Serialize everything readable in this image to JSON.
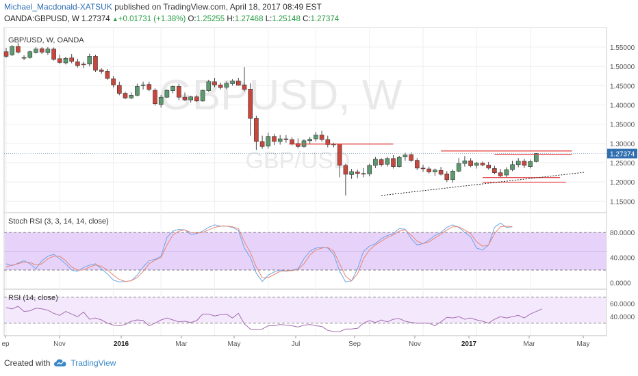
{
  "header": {
    "author": "Michael_Macdonald-XATSUK",
    "published": "published on TradingView.com, April 18, 2017 08:49 EST"
  },
  "quote": {
    "symbol": "OANDA:GBPUSD, W",
    "last": "1.27374",
    "change": "+0.01731 (+1.38%)",
    "open_label": "O:",
    "open": "1.25255",
    "high_label": "H:",
    "high": "1.27468",
    "low_label": "L:",
    "low": "1.25148",
    "close_label": "C:",
    "close": "1.27374"
  },
  "footer": {
    "created_with": "Created with",
    "brand": "TradingView",
    "logo_icon": "tradingview-cloud-icon"
  },
  "colors": {
    "up": "#5b9a6f",
    "down": "#c9463d",
    "stoch_k": "#6ba4e6",
    "stoch_d": "#e9846f",
    "rsi": "#a36bb0",
    "stoch_band": "#e7d3fa",
    "rsi_band": "#f4e9fc",
    "level_lines": "#e64a4a",
    "price_tag": "#2f6fb0"
  },
  "chart_data": [
    {
      "type": "candlestick",
      "title": "GBP/USD, W, OANDA",
      "watermark_main": "GBPUSD, W",
      "watermark_sub": "GBP/USD",
      "x_tick_labels": [
        "ep",
        "Nov",
        "2016",
        "Mar",
        "May",
        "Jul",
        "Sep",
        "Nov",
        "2017",
        "Mar",
        "May"
      ],
      "y_tick_labels": [
        "1.55000",
        "1.50000",
        "1.45000",
        "1.40000",
        "1.35000",
        "1.30000",
        "1.25000",
        "1.20000",
        "1.15000"
      ],
      "ylim": [
        1.14,
        1.58
      ],
      "last_price_label": "1.27374",
      "candles": [
        {
          "o": 1.538,
          "h": 1.548,
          "l": 1.522,
          "c": 1.526
        },
        {
          "o": 1.53,
          "h": 1.555,
          "l": 1.527,
          "c": 1.552
        },
        {
          "o": 1.552,
          "h": 1.561,
          "l": 1.533,
          "c": 1.537
        },
        {
          "o": 1.522,
          "h": 1.529,
          "l": 1.516,
          "c": 1.523
        },
        {
          "o": 1.523,
          "h": 1.541,
          "l": 1.52,
          "c": 1.538
        },
        {
          "o": 1.536,
          "h": 1.55,
          "l": 1.533,
          "c": 1.545
        },
        {
          "o": 1.546,
          "h": 1.55,
          "l": 1.532,
          "c": 1.537
        },
        {
          "o": 1.536,
          "h": 1.55,
          "l": 1.53,
          "c": 1.545
        },
        {
          "o": 1.545,
          "h": 1.549,
          "l": 1.515,
          "c": 1.518
        },
        {
          "o": 1.52,
          "h": 1.53,
          "l": 1.506,
          "c": 1.51
        },
        {
          "o": 1.509,
          "h": 1.525,
          "l": 1.505,
          "c": 1.521
        },
        {
          "o": 1.522,
          "h": 1.532,
          "l": 1.508,
          "c": 1.513
        },
        {
          "o": 1.512,
          "h": 1.52,
          "l": 1.497,
          "c": 1.502
        },
        {
          "o": 1.506,
          "h": 1.512,
          "l": 1.495,
          "c": 1.504
        },
        {
          "o": 1.506,
          "h": 1.533,
          "l": 1.5,
          "c": 1.526
        },
        {
          "o": 1.526,
          "h": 1.53,
          "l": 1.486,
          "c": 1.49
        },
        {
          "o": 1.491,
          "h": 1.495,
          "l": 1.481,
          "c": 1.487
        },
        {
          "o": 1.487,
          "h": 1.493,
          "l": 1.465,
          "c": 1.469
        },
        {
          "o": 1.468,
          "h": 1.475,
          "l": 1.445,
          "c": 1.452
        },
        {
          "o": 1.451,
          "h": 1.46,
          "l": 1.425,
          "c": 1.43
        },
        {
          "o": 1.43,
          "h": 1.434,
          "l": 1.415,
          "c": 1.418
        },
        {
          "o": 1.418,
          "h": 1.432,
          "l": 1.415,
          "c": 1.425
        },
        {
          "o": 1.425,
          "h": 1.455,
          "l": 1.422,
          "c": 1.448
        },
        {
          "o": 1.45,
          "h": 1.46,
          "l": 1.44,
          "c": 1.452
        },
        {
          "o": 1.453,
          "h": 1.46,
          "l": 1.436,
          "c": 1.44
        },
        {
          "o": 1.438,
          "h": 1.443,
          "l": 1.398,
          "c": 1.403
        },
        {
          "o": 1.401,
          "h": 1.426,
          "l": 1.393,
          "c": 1.42
        },
        {
          "o": 1.42,
          "h": 1.44,
          "l": 1.418,
          "c": 1.438
        },
        {
          "o": 1.437,
          "h": 1.45,
          "l": 1.43,
          "c": 1.448
        },
        {
          "o": 1.448,
          "h": 1.455,
          "l": 1.412,
          "c": 1.42
        },
        {
          "o": 1.42,
          "h": 1.432,
          "l": 1.41,
          "c": 1.413
        },
        {
          "o": 1.413,
          "h": 1.424,
          "l": 1.406,
          "c": 1.421
        },
        {
          "o": 1.421,
          "h": 1.425,
          "l": 1.408,
          "c": 1.41
        },
        {
          "o": 1.41,
          "h": 1.44,
          "l": 1.408,
          "c": 1.438
        },
        {
          "o": 1.437,
          "h": 1.465,
          "l": 1.434,
          "c": 1.46
        },
        {
          "o": 1.46,
          "h": 1.47,
          "l": 1.446,
          "c": 1.452
        },
        {
          "o": 1.452,
          "h": 1.458,
          "l": 1.44,
          "c": 1.445
        },
        {
          "o": 1.446,
          "h": 1.461,
          "l": 1.441,
          "c": 1.456
        },
        {
          "o": 1.455,
          "h": 1.467,
          "l": 1.45,
          "c": 1.462
        },
        {
          "o": 1.462,
          "h": 1.47,
          "l": 1.45,
          "c": 1.451
        },
        {
          "o": 1.452,
          "h": 1.498,
          "l": 1.435,
          "c": 1.44
        },
        {
          "o": 1.441,
          "h": 1.456,
          "l": 1.32,
          "c": 1.365
        },
        {
          "o": 1.365,
          "h": 1.372,
          "l": 1.283,
          "c": 1.305
        },
        {
          "o": 1.305,
          "h": 1.32,
          "l": 1.286,
          "c": 1.292
        },
        {
          "o": 1.293,
          "h": 1.328,
          "l": 1.287,
          "c": 1.318
        },
        {
          "o": 1.318,
          "h": 1.325,
          "l": 1.296,
          "c": 1.305
        },
        {
          "o": 1.305,
          "h": 1.322,
          "l": 1.297,
          "c": 1.312
        },
        {
          "o": 1.312,
          "h": 1.322,
          "l": 1.302,
          "c": 1.31
        },
        {
          "o": 1.31,
          "h": 1.316,
          "l": 1.295,
          "c": 1.3
        },
        {
          "o": 1.3,
          "h": 1.313,
          "l": 1.287,
          "c": 1.292
        },
        {
          "o": 1.292,
          "h": 1.311,
          "l": 1.289,
          "c": 1.307
        },
        {
          "o": 1.307,
          "h": 1.317,
          "l": 1.298,
          "c": 1.311
        },
        {
          "o": 1.312,
          "h": 1.33,
          "l": 1.305,
          "c": 1.322
        },
        {
          "o": 1.322,
          "h": 1.333,
          "l": 1.305,
          "c": 1.31
        },
        {
          "o": 1.31,
          "h": 1.32,
          "l": 1.29,
          "c": 1.297
        },
        {
          "o": 1.297,
          "h": 1.302,
          "l": 1.29,
          "c": 1.298
        },
        {
          "o": 1.298,
          "h": 1.3,
          "l": 1.212,
          "c": 1.243
        },
        {
          "o": 1.243,
          "h": 1.247,
          "l": 1.165,
          "c": 1.22
        },
        {
          "o": 1.219,
          "h": 1.234,
          "l": 1.208,
          "c": 1.227
        },
        {
          "o": 1.226,
          "h": 1.232,
          "l": 1.21,
          "c": 1.222
        },
        {
          "o": 1.222,
          "h": 1.236,
          "l": 1.212,
          "c": 1.221
        },
        {
          "o": 1.221,
          "h": 1.247,
          "l": 1.215,
          "c": 1.243
        },
        {
          "o": 1.243,
          "h": 1.265,
          "l": 1.236,
          "c": 1.259
        },
        {
          "o": 1.258,
          "h": 1.262,
          "l": 1.24,
          "c": 1.245
        },
        {
          "o": 1.246,
          "h": 1.265,
          "l": 1.24,
          "c": 1.261
        },
        {
          "o": 1.261,
          "h": 1.27,
          "l": 1.235,
          "c": 1.24
        },
        {
          "o": 1.24,
          "h": 1.268,
          "l": 1.238,
          "c": 1.264
        },
        {
          "o": 1.265,
          "h": 1.276,
          "l": 1.255,
          "c": 1.27
        },
        {
          "o": 1.271,
          "h": 1.277,
          "l": 1.252,
          "c": 1.256
        },
        {
          "o": 1.256,
          "h": 1.262,
          "l": 1.231,
          "c": 1.236
        },
        {
          "o": 1.236,
          "h": 1.245,
          "l": 1.226,
          "c": 1.235
        },
        {
          "o": 1.234,
          "h": 1.24,
          "l": 1.222,
          "c": 1.226
        },
        {
          "o": 1.226,
          "h": 1.235,
          "l": 1.216,
          "c": 1.231
        },
        {
          "o": 1.23,
          "h": 1.239,
          "l": 1.217,
          "c": 1.22
        },
        {
          "o": 1.221,
          "h": 1.228,
          "l": 1.2,
          "c": 1.206
        },
        {
          "o": 1.206,
          "h": 1.233,
          "l": 1.198,
          "c": 1.228
        },
        {
          "o": 1.228,
          "h": 1.262,
          "l": 1.225,
          "c": 1.248
        },
        {
          "o": 1.248,
          "h": 1.267,
          "l": 1.24,
          "c": 1.255
        },
        {
          "o": 1.255,
          "h": 1.262,
          "l": 1.238,
          "c": 1.242
        },
        {
          "o": 1.243,
          "h": 1.252,
          "l": 1.235,
          "c": 1.249
        },
        {
          "o": 1.249,
          "h": 1.253,
          "l": 1.241,
          "c": 1.244
        },
        {
          "o": 1.244,
          "h": 1.252,
          "l": 1.232,
          "c": 1.236
        },
        {
          "o": 1.235,
          "h": 1.242,
          "l": 1.22,
          "c": 1.224
        },
        {
          "o": 1.224,
          "h": 1.234,
          "l": 1.21,
          "c": 1.216
        },
        {
          "o": 1.218,
          "h": 1.238,
          "l": 1.212,
          "c": 1.232
        },
        {
          "o": 1.232,
          "h": 1.255,
          "l": 1.228,
          "c": 1.245
        },
        {
          "o": 1.245,
          "h": 1.262,
          "l": 1.238,
          "c": 1.254
        },
        {
          "o": 1.254,
          "h": 1.26,
          "l": 1.236,
          "c": 1.243
        },
        {
          "o": 1.24,
          "h": 1.258,
          "l": 1.235,
          "c": 1.253
        },
        {
          "o": 1.253,
          "h": 1.275,
          "l": 1.251,
          "c": 1.274
        }
      ]
    },
    {
      "type": "line",
      "title": "Stoch RSI (3, 3, 14, 14, close)",
      "y_tick_labels": [
        "80.0000",
        "40.0000",
        "0.0000"
      ],
      "ylim": [
        -5,
        105
      ],
      "bands": [
        20,
        80
      ],
      "series": [
        {
          "values": [
            30,
            27,
            31,
            35,
            30,
            22,
            35,
            42,
            45,
            38,
            30,
            20,
            18,
            24,
            28,
            30,
            22,
            14,
            4,
            1,
            2,
            3,
            12,
            25,
            35,
            37,
            42,
            72,
            82,
            85,
            84,
            77,
            78,
            82,
            88,
            92,
            90,
            90,
            88,
            83,
            55,
            40,
            15,
            2,
            12,
            17,
            20,
            18,
            20,
            22,
            38,
            50,
            55,
            56,
            55,
            45,
            18,
            1,
            3,
            22,
            50,
            58,
            62,
            70,
            75,
            78,
            86,
            85,
            70,
            60,
            62,
            68,
            75,
            80,
            88,
            92,
            88,
            80,
            73,
            55,
            52,
            60,
            88,
            95,
            88,
            89
          ]
        },
        {
          "values": [
            25,
            28,
            30,
            33,
            32,
            28,
            30,
            38,
            42,
            42,
            35,
            25,
            20,
            20,
            25,
            28,
            26,
            20,
            12,
            5,
            2,
            3,
            8,
            18,
            30,
            36,
            40,
            60,
            76,
            82,
            84,
            80,
            79,
            80,
            84,
            88,
            90,
            90,
            89,
            86,
            65,
            48,
            25,
            8,
            8,
            13,
            18,
            19,
            19,
            21,
            30,
            44,
            52,
            55,
            56,
            50,
            30,
            10,
            3,
            14,
            38,
            52,
            60,
            66,
            72,
            76,
            82,
            84,
            76,
            66,
            62,
            65,
            71,
            77,
            84,
            89,
            89,
            84,
            78,
            65,
            58,
            60,
            78,
            89,
            90,
            89
          ]
        }
      ]
    },
    {
      "type": "line",
      "title": "RSI (14, close)",
      "y_tick_labels": [
        "60.0000",
        "40.0000"
      ],
      "ylim": [
        15,
        78
      ],
      "bands": [
        30,
        70
      ],
      "series": [
        {
          "values": [
            54,
            52,
            56,
            48,
            49,
            53,
            52,
            50,
            45,
            42,
            48,
            44,
            40,
            47,
            36,
            38,
            35,
            30,
            27,
            26,
            28,
            33,
            35,
            34,
            26,
            30,
            35,
            38,
            35,
            32,
            33,
            31,
            34,
            44,
            44,
            41,
            43,
            44,
            38,
            45,
            29,
            21,
            20,
            21,
            26,
            26,
            28,
            27,
            26,
            24,
            27,
            28,
            26,
            25,
            19,
            17,
            17,
            21,
            21,
            22,
            30,
            34,
            31,
            35,
            32,
            36,
            37,
            33,
            31,
            30,
            30,
            30,
            26,
            32,
            39,
            38,
            40,
            36,
            38,
            35,
            33,
            30,
            36,
            40,
            38,
            40,
            42,
            38,
            44,
            48,
            52
          ]
        }
      ]
    }
  ]
}
